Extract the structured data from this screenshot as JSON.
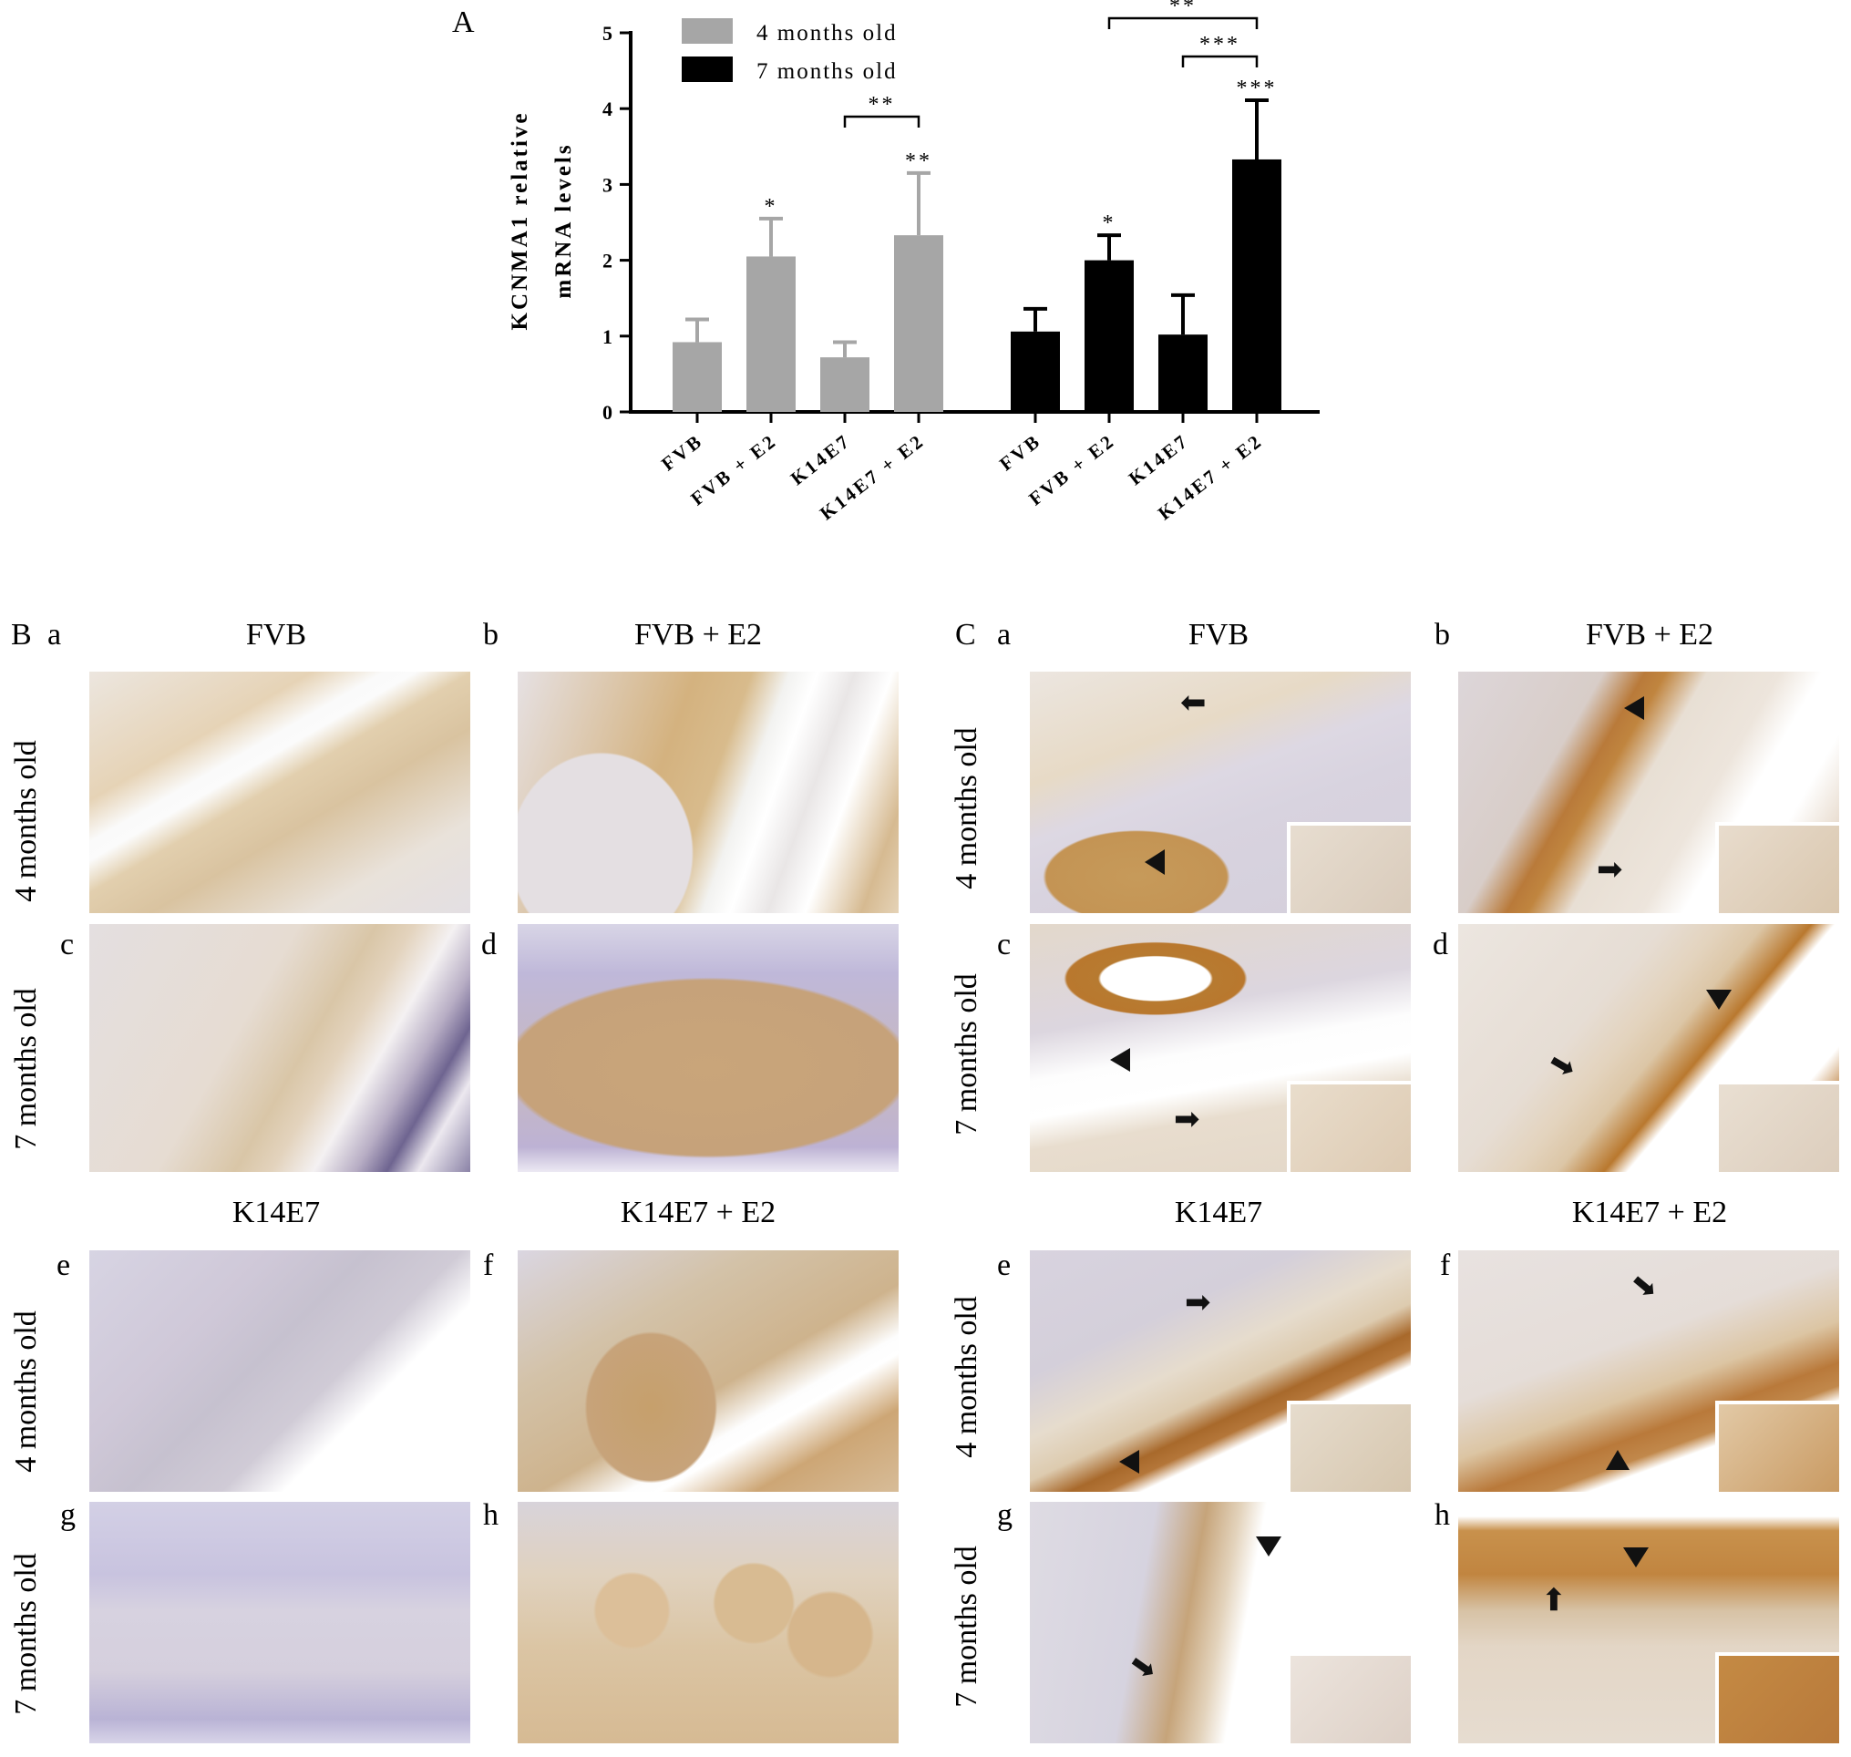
{
  "panel_a_letter": "A",
  "chart_data": {
    "type": "bar",
    "title": "",
    "xlabel": "",
    "ylabel": "KCNMA1 relative mRNA levels",
    "ylim": [
      0,
      5
    ],
    "yticks": [
      "0",
      "1",
      "2",
      "3",
      "4",
      "5"
    ],
    "legend_position": "top-left",
    "series": [
      {
        "name": "4 months old",
        "color": "#a6a6a6",
        "categories": [
          "FVB",
          "FVB + E2",
          "K14E7",
          "K14E7 + E2"
        ],
        "values": [
          0.92,
          2.05,
          0.72,
          2.33
        ],
        "error": [
          0.3,
          0.5,
          0.2,
          0.82
        ],
        "marks": [
          "",
          "*",
          "",
          "**"
        ]
      },
      {
        "name": "7 months old",
        "color": "#000000",
        "categories": [
          "FVB",
          "FVB + E2",
          "K14E7",
          "K14E7 + E2"
        ],
        "values": [
          1.06,
          2.0,
          1.02,
          3.33
        ],
        "error": [
          0.3,
          0.33,
          0.52,
          0.78
        ],
        "marks": [
          "",
          "*",
          "",
          "***"
        ]
      }
    ],
    "comparisons": [
      {
        "label": "**",
        "series": 0,
        "from": 2,
        "to": 3
      },
      {
        "label": "**",
        "series": 1,
        "from": 1,
        "to": 3
      },
      {
        "label": "***",
        "series": 1,
        "from": 2,
        "to": 3
      }
    ]
  },
  "panel_b": {
    "letter": "B",
    "titles": [
      "FVB",
      "FVB +   E2",
      "K14E7",
      "K14E7 + E2"
    ],
    "row_labels": [
      "4 months old",
      "7 months old",
      "4 months old",
      "7 months old"
    ],
    "sub_letters": [
      "a",
      "b",
      "c",
      "d",
      "e",
      "f",
      "g",
      "h"
    ]
  },
  "panel_c": {
    "letter": "C",
    "titles": [
      "FVB",
      "FVB +   E2",
      "K14E7",
      "K14E7 + E2"
    ],
    "row_labels": [
      "4 months old",
      "7 months old",
      "4 months old",
      "7 months old"
    ],
    "sub_letters": [
      "a",
      "b",
      "c",
      "d",
      "e",
      "f",
      "g",
      "h"
    ]
  }
}
